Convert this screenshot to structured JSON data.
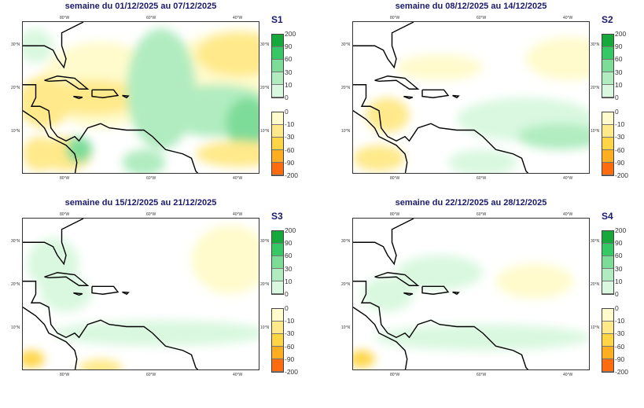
{
  "panels": [
    {
      "title": "semaine du 01/12/2025 au 07/12/2025",
      "label": "S1"
    },
    {
      "title": "semaine du 08/12/2025 au 14/12/2025",
      "label": "S2"
    },
    {
      "title": "semaine du 15/12/2025 au 21/12/2025",
      "label": "S3"
    },
    {
      "title": "semaine du 22/12/2025 au 28/12/2025",
      "label": "S4"
    }
  ],
  "axes": {
    "lon_labels": [
      "80°W",
      "60°W",
      "40°W"
    ],
    "lat_labels": [
      "30°N",
      "20°N",
      "10°N"
    ]
  },
  "legend": {
    "positive": {
      "ticks": [
        "200",
        "90",
        "60",
        "30",
        "10",
        "0"
      ],
      "colors": [
        "#16a83a",
        "#36c865",
        "#7edc99",
        "#b0ecc0",
        "#d9f8df"
      ]
    },
    "negative": {
      "ticks": [
        "0",
        "-10",
        "-30",
        "-60",
        "-90",
        "-200"
      ],
      "colors": [
        "#fffbcc",
        "#ffe98a",
        "#ffd545",
        "#ffae22",
        "#ff6c10"
      ]
    }
  }
}
